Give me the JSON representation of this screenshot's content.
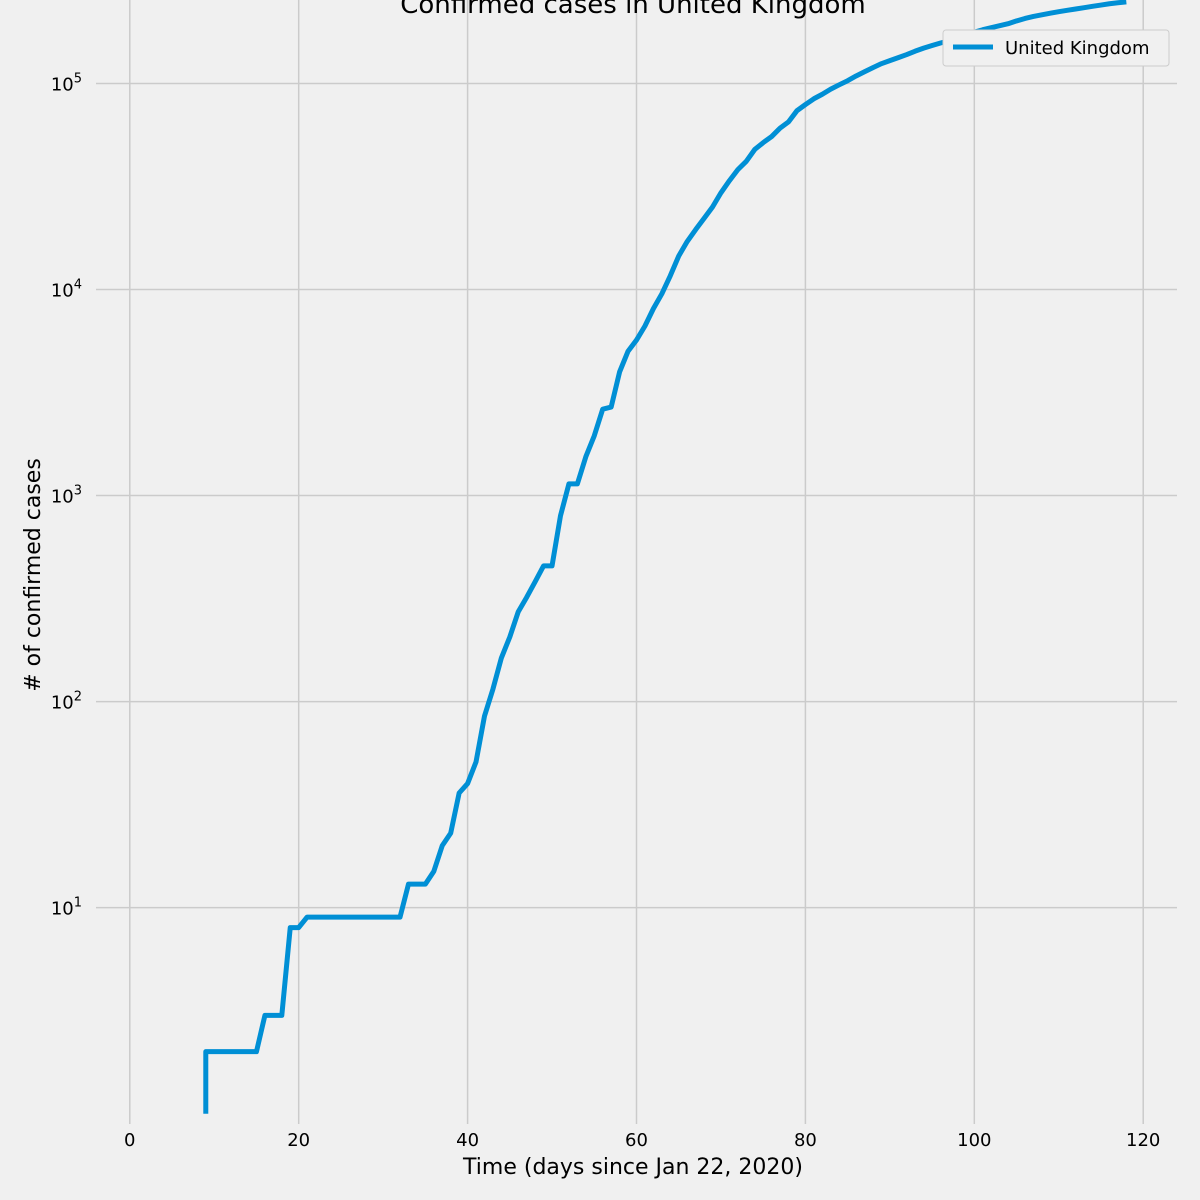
{
  "chart_data": {
    "type": "line",
    "title": "Confirmed cases in United Kingdom",
    "xlabel": "Time (days since Jan 22, 2020)",
    "ylabel": "# of confirmed cases",
    "xlim": [
      -4,
      124
    ],
    "ylim_log10": [
      -0.05,
      5.405
    ],
    "y_scale": "log",
    "grid": true,
    "legend_position": "top-right",
    "x_ticks": [
      0,
      20,
      40,
      60,
      80,
      100,
      120
    ],
    "y_ticks": [
      {
        "value": 10,
        "base": "10",
        "exp": "1"
      },
      {
        "value": 100,
        "base": "10",
        "exp": "2"
      },
      {
        "value": 1000,
        "base": "10",
        "exp": "3"
      },
      {
        "value": 10000,
        "base": "10",
        "exp": "4"
      },
      {
        "value": 100000,
        "base": "10",
        "exp": "5"
      }
    ],
    "colors": {
      "series": "#008fd5",
      "grid": "#cbcbcb",
      "background": "#f0f0f0"
    },
    "series": [
      {
        "name": "United Kingdom",
        "x": [
          9,
          9,
          10,
          11,
          12,
          13,
          14,
          15,
          16,
          17,
          18,
          19,
          20,
          21,
          22,
          23,
          24,
          25,
          26,
          27,
          28,
          29,
          30,
          31,
          32,
          33,
          34,
          35,
          36,
          37,
          38,
          39,
          40,
          41,
          42,
          43,
          44,
          45,
          46,
          47,
          48,
          49,
          50,
          51,
          52,
          53,
          54,
          55,
          56,
          57,
          58,
          59,
          60,
          61,
          62,
          63,
          64,
          65,
          66,
          67,
          68,
          69,
          70,
          71,
          72,
          73,
          74,
          75,
          76,
          77,
          78,
          79,
          80,
          81,
          82,
          83,
          84,
          85,
          86,
          87,
          88,
          89,
          90,
          91,
          92,
          93,
          94,
          95,
          96,
          97,
          98,
          99,
          100,
          101,
          102,
          103,
          104,
          105,
          106,
          107,
          108,
          109,
          110,
          111,
          112,
          113,
          114,
          115,
          116,
          117,
          118
        ],
        "values": [
          1,
          2,
          2,
          2,
          2,
          2,
          2,
          2,
          3,
          3,
          3,
          8,
          8,
          9,
          9,
          9,
          9,
          9,
          9,
          9,
          9,
          9,
          9,
          9,
          9,
          13,
          13,
          13,
          15,
          20,
          23,
          36,
          40,
          51,
          85,
          115,
          163,
          206,
          273,
          321,
          382,
          456,
          456,
          798,
          1140,
          1140,
          1543,
          1950,
          2626,
          2689,
          3983,
          5018,
          5683,
          6650,
          8077,
          9529,
          11658,
          14543,
          17089,
          19522,
          22141,
          25150,
          29474,
          33718,
          38168,
          41903,
          47806,
          51608,
          55242,
          60733,
          65077,
          73758,
          78991,
          84279,
          88621,
          93873,
          98476,
          103093,
          108692,
          113973,
          119392,
          124743,
          129044,
          133495,
          138078,
          143464,
          148377,
          152840,
          157149,
          161145,
          165221,
          171253,
          177454,
          182260,
          186599,
          190584,
          194990,
          201101,
          206715,
          211364,
          215260,
          219183,
          223060,
          226463,
          229705,
          233151,
          236711,
          240161,
          243695,
          246406,
          248818
        ]
      }
    ]
  }
}
